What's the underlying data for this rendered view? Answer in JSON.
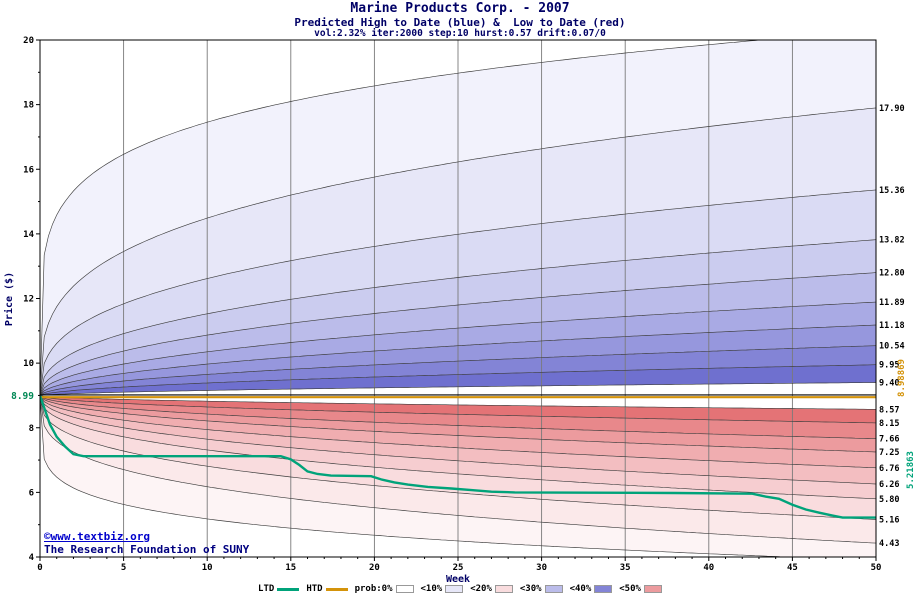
{
  "header": {
    "title": "Marine Products Corp. - 2007",
    "subtitle": "Predicted High to Date (blue) &  Low to Date (red)",
    "params": "vol:2.32% iter:2000 step:10 hurst:0.57 drift:0.07/0"
  },
  "footer": {
    "credit1": "©www.textbiz.org",
    "credit2": "The Research Foundation of SUNY"
  },
  "chart_data": {
    "type": "area",
    "title": "Marine Products Corp. - 2007",
    "subtitle": "Predicted High to Date (blue) &  Low to Date (red)",
    "params_label": "vol:2.32% iter:2000 step:10 hurst:0.57 drift:0.07/0",
    "xlabel": "Week",
    "ylabel": "Price ($)",
    "xlim": [
      0,
      50
    ],
    "ylim": [
      4,
      20
    ],
    "x_ticks": [
      0,
      5,
      10,
      15,
      20,
      25,
      30,
      35,
      40,
      45,
      50
    ],
    "y_ticks": [
      4,
      6,
      8,
      10,
      12,
      14,
      16,
      18,
      20
    ],
    "grid": "vertical-major-only",
    "legend_position": "bottom-center",
    "start_price": 8.99,
    "start_price_label": "8.99",
    "start_price_color": "#008855",
    "center_line_color": "#000000",
    "boundary_line_color": "#3c3c3c",
    "grid_color": "#7a7a7a",
    "htd": {
      "name": "HTD",
      "value": 8.98869,
      "label": "8.98869",
      "color": "#d4930a"
    },
    "ltd": {
      "name": "LTD",
      "value": 5.21863,
      "label": "5.21863",
      "color": "#00a37a",
      "points": [
        [
          0,
          8.99
        ],
        [
          0.3,
          8.55
        ],
        [
          0.6,
          8.1
        ],
        [
          1.0,
          7.72
        ],
        [
          1.5,
          7.42
        ],
        [
          2.0,
          7.18
        ],
        [
          2.6,
          7.12
        ],
        [
          14.4,
          7.12
        ],
        [
          15.0,
          7.02
        ],
        [
          15.5,
          6.85
        ],
        [
          16.0,
          6.65
        ],
        [
          16.6,
          6.57
        ],
        [
          17.4,
          6.52
        ],
        [
          19.8,
          6.5
        ],
        [
          20.4,
          6.4
        ],
        [
          21.2,
          6.31
        ],
        [
          22.0,
          6.24
        ],
        [
          23.2,
          6.17
        ],
        [
          24.6,
          6.12
        ],
        [
          25.8,
          6.07
        ],
        [
          27.0,
          6.02
        ],
        [
          28.4,
          6.0
        ],
        [
          33.0,
          5.99
        ],
        [
          38.0,
          5.98
        ],
        [
          42.6,
          5.96
        ],
        [
          43.4,
          5.87
        ],
        [
          44.2,
          5.8
        ],
        [
          45.0,
          5.62
        ],
        [
          45.8,
          5.47
        ],
        [
          46.6,
          5.37
        ],
        [
          47.4,
          5.28
        ],
        [
          48.0,
          5.22
        ],
        [
          50,
          5.22
        ]
      ]
    },
    "upper_fan": {
      "boundaries": [
        {
          "final": 20.3,
          "expo": 0.18,
          "label": ""
        },
        {
          "final": 17.9,
          "expo": 0.3,
          "label": "17.90"
        },
        {
          "final": 15.36,
          "expo": 0.35,
          "label": "15.36"
        },
        {
          "final": 13.82,
          "expo": 0.4,
          "label": "13.82"
        },
        {
          "final": 12.8,
          "expo": 0.44,
          "label": "12.80"
        },
        {
          "final": 11.89,
          "expo": 0.47,
          "label": "11.89"
        },
        {
          "final": 11.18,
          "expo": 0.5,
          "label": "11.18"
        },
        {
          "final": 10.54,
          "expo": 0.53,
          "label": "10.54"
        },
        {
          "final": 9.95,
          "expo": 0.55,
          "label": "9.95"
        },
        {
          "final": 9.4,
          "expo": 0.57,
          "label": "9.40"
        }
      ],
      "band_colors": [
        "#f2f2fc",
        "#e7e7f8",
        "#dadbf4",
        "#cbccef",
        "#bbbcea",
        "#a9aae4",
        "#9697dd",
        "#8384d6",
        "#6f70cf"
      ]
    },
    "lower_fan": {
      "boundaries": [
        {
          "final": 3.9,
          "expo": 0.18,
          "label": ""
        },
        {
          "final": 4.43,
          "expo": 0.3,
          "label": "4.43"
        },
        {
          "final": 5.16,
          "expo": 0.35,
          "label": "5.16"
        },
        {
          "final": 5.8,
          "expo": 0.4,
          "label": "5.80"
        },
        {
          "final": 6.26,
          "expo": 0.44,
          "label": "6.26"
        },
        {
          "final": 6.76,
          "expo": 0.47,
          "label": "6.76"
        },
        {
          "final": 7.25,
          "expo": 0.5,
          "label": "7.25"
        },
        {
          "final": 7.66,
          "expo": 0.53,
          "label": "7.66"
        },
        {
          "final": 8.15,
          "expo": 0.55,
          "label": "8.15"
        },
        {
          "final": 8.57,
          "expo": 0.57,
          "label": "8.57"
        }
      ],
      "band_colors": [
        "#fdf4f5",
        "#fbe9ea",
        "#f9dcde",
        "#f6cdd0",
        "#f3bec1",
        "#f0adb0",
        "#ec9b9e",
        "#e8888b",
        "#e47376"
      ]
    },
    "legend": [
      {
        "label": "LTD",
        "type": "line",
        "color": "#00a37a"
      },
      {
        "label": "HTD",
        "type": "line",
        "color": "#d4930a"
      },
      {
        "label": "prob:0%",
        "type": "box",
        "color": "#ffffff"
      },
      {
        "label": "<10%",
        "type": "box",
        "color": "#e7e7f8"
      },
      {
        "label": "<20%",
        "type": "box",
        "color": "#f9dcde"
      },
      {
        "label": "<30%",
        "type": "box",
        "color": "#bbbcea"
      },
      {
        "label": "<40%",
        "type": "box",
        "color": "#8384d6"
      },
      {
        "label": "<50%",
        "type": "box",
        "color": "#ec9b9e"
      }
    ]
  }
}
